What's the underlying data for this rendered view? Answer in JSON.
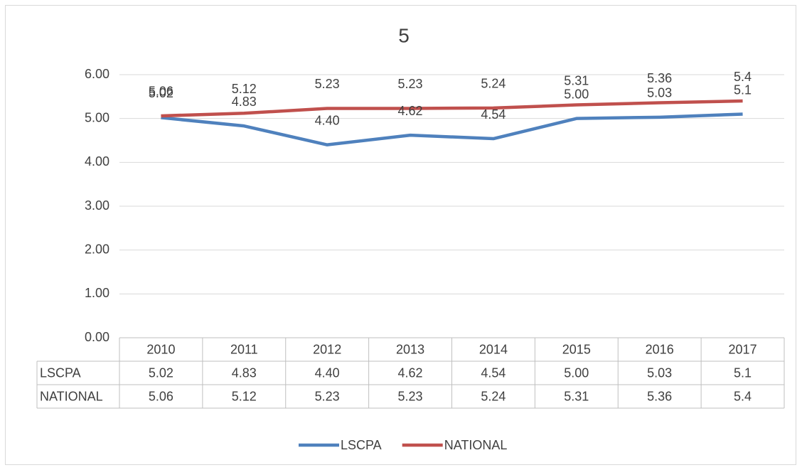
{
  "chart_data": {
    "type": "line",
    "title": "5",
    "categories": [
      "2010",
      "2011",
      "2012",
      "2013",
      "2014",
      "2015",
      "2016",
      "2017"
    ],
    "series": [
      {
        "name": "LSCPA",
        "color": "#4f81bd",
        "values": [
          5.02,
          4.83,
          4.4,
          4.62,
          4.54,
          5.0,
          5.03,
          5.1
        ],
        "value_labels": [
          "5.02",
          "4.83",
          "4.40",
          "4.62",
          "4.54",
          "5.00",
          "5.03",
          "5.1"
        ]
      },
      {
        "name": "NATIONAL",
        "color": "#c0504d",
        "values": [
          5.06,
          5.12,
          5.23,
          5.23,
          5.24,
          5.31,
          5.36,
          5.4
        ]
      }
    ],
    "ylim": [
      0,
      6
    ],
    "yticks": [
      {
        "value": 0,
        "label": "0.00"
      },
      {
        "value": 1,
        "label": "1.00"
      },
      {
        "value": 2,
        "label": "2.00"
      },
      {
        "value": 3,
        "label": "3.00"
      },
      {
        "value": 4,
        "label": "4.00"
      },
      {
        "value": 5,
        "label": "5.00"
      },
      {
        "value": 6,
        "label": "6.00"
      }
    ],
    "grid": true,
    "legend": "bottom",
    "data_table": true
  }
}
